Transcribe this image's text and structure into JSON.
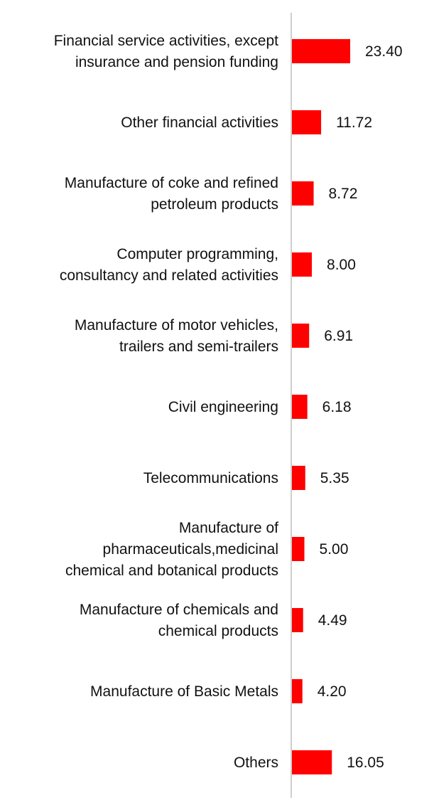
{
  "chart_data": {
    "type": "bar",
    "orientation": "horizontal",
    "title": "",
    "xlabel": "",
    "ylabel": "",
    "categories": [
      [
        "Financial service activities, except",
        "insurance and pension funding"
      ],
      [
        "Other financial activities"
      ],
      [
        "Manufacture of coke and refined",
        "petroleum products"
      ],
      [
        "Computer programming,",
        "consultancy and related activities"
      ],
      [
        "Manufacture of motor vehicles,",
        "trailers and semi-trailers"
      ],
      [
        "Civil engineering"
      ],
      [
        "Telecommunications"
      ],
      [
        "Manufacture of",
        "pharmaceuticals,medicinal",
        "chemical and botanical products"
      ],
      [
        "Manufacture of chemicals and",
        "chemical products"
      ],
      [
        "Manufacture of Basic Metals"
      ],
      [
        "Others"
      ]
    ],
    "values": [
      23.4,
      11.72,
      8.72,
      8.0,
      6.91,
      6.18,
      5.35,
      5.0,
      4.49,
      4.2,
      16.05
    ],
    "value_labels": [
      "23.40",
      "11.72",
      "8.72",
      "8.00",
      "6.91",
      "6.18",
      "5.35",
      "5.00",
      "4.49",
      "4.20",
      "16.05"
    ],
    "xlim": [
      0,
      23.4
    ],
    "grid": false,
    "legend": "none",
    "colors": {
      "bar": "#ff0000",
      "axis": "#cfcfcf",
      "text": "#111111"
    }
  }
}
